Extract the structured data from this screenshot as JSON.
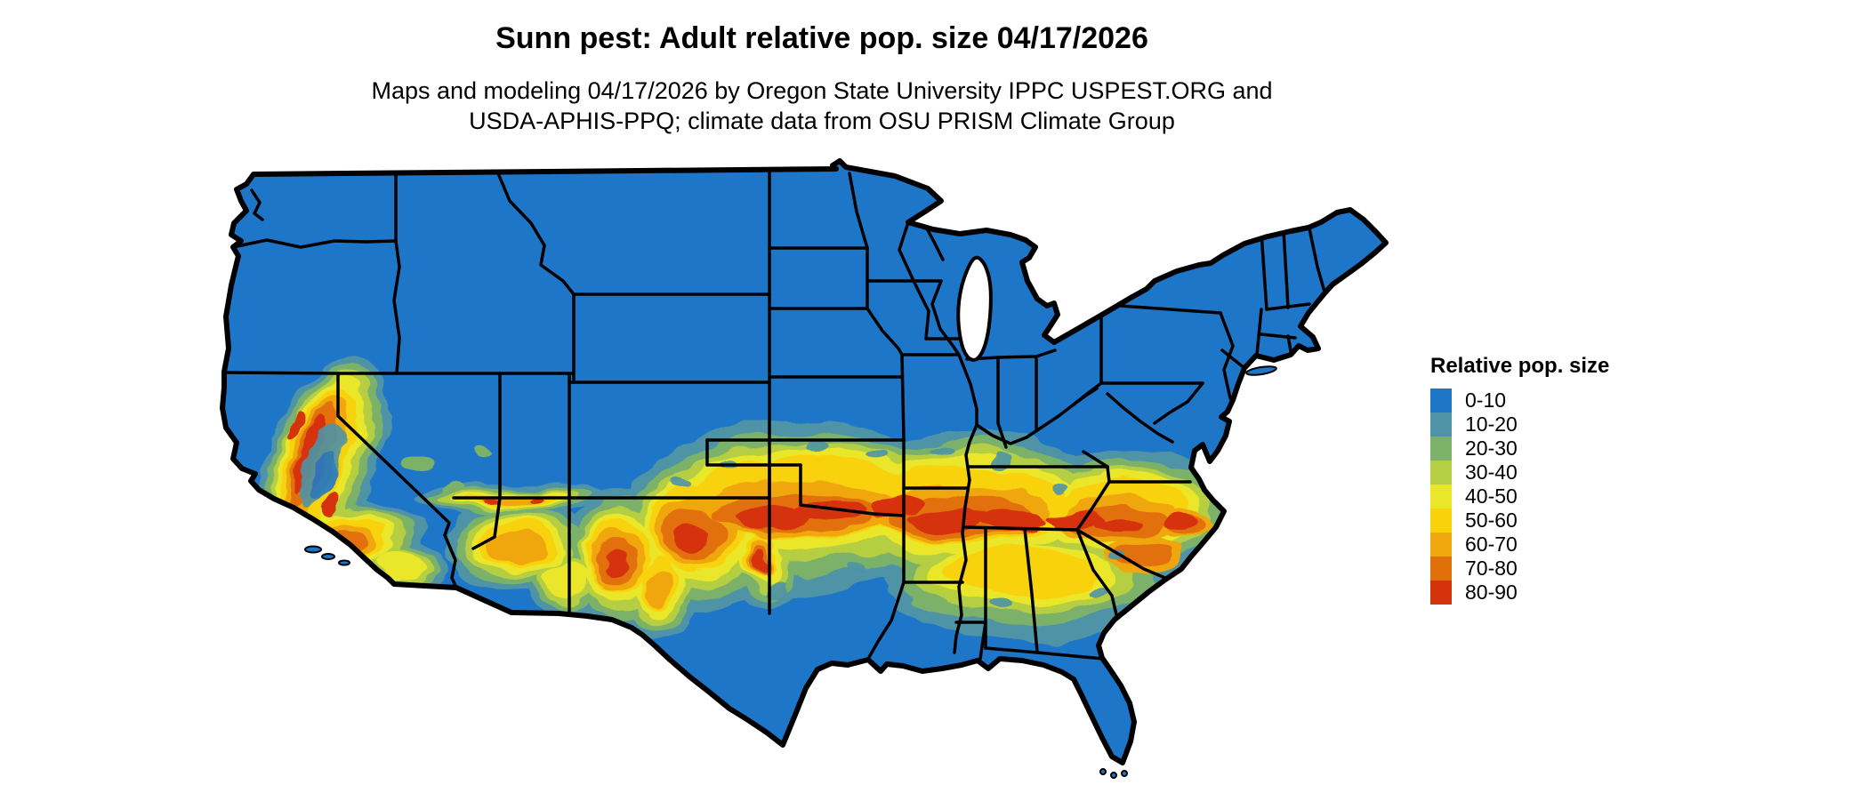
{
  "header": {
    "title": "Sunn pest: Adult relative pop. size 04/17/2026",
    "subtitle_line1": "Maps and modeling 04/17/2026 by Oregon State University IPPC USPEST.ORG and",
    "subtitle_line2": "USDA-APHIS-PPQ; climate data from OSU PRISM Climate Group"
  },
  "legend": {
    "title": "Relative pop. size",
    "items": [
      {
        "label": "0-10",
        "color": "#1d76c8"
      },
      {
        "label": "10-20",
        "color": "#4f93a6"
      },
      {
        "label": "20-30",
        "color": "#7bb169"
      },
      {
        "label": "30-40",
        "color": "#b5ce43"
      },
      {
        "label": "40-50",
        "color": "#eae72a"
      },
      {
        "label": "50-60",
        "color": "#f8d30b"
      },
      {
        "label": "60-70",
        "color": "#f0a60d"
      },
      {
        "label": "70-80",
        "color": "#e1700b"
      },
      {
        "label": "80-90",
        "color": "#d5330b"
      }
    ]
  },
  "map": {
    "region": "Continental United States",
    "land_color": "#1d76c8",
    "border_color": "#000000",
    "water_color": "#ffffff"
  }
}
